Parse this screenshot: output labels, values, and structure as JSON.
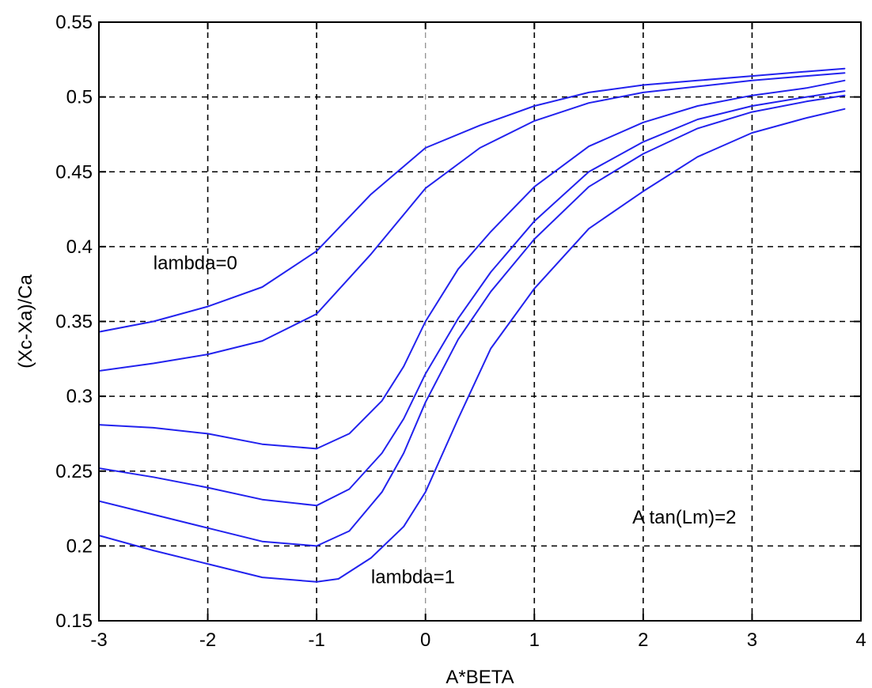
{
  "chart_data": {
    "type": "line",
    "xlabel": "A*BETA",
    "ylabel": "(Xc-Xa)/Ca",
    "xlim": [
      -3,
      4
    ],
    "ylim": [
      0.15,
      0.55
    ],
    "xticks": [
      "-3",
      "-2",
      "-1",
      "0",
      "1",
      "2",
      "3",
      "4"
    ],
    "yticks": [
      "0.15",
      "0.2",
      "0.25",
      "0.3",
      "0.35",
      "0.4",
      "0.45",
      "0.5",
      "0.55"
    ],
    "grid": true,
    "line_color": "#2222ee",
    "annotations": [
      {
        "text": "lambda=0",
        "x": -2.5,
        "y": 0.385
      },
      {
        "text": "lambda=1",
        "x": -0.5,
        "y": 0.175
      },
      {
        "text": "A tan(Lm)=2",
        "x": 1.9,
        "y": 0.215
      }
    ],
    "series": [
      {
        "x": [
          -3,
          -2.5,
          -2,
          -1.5,
          -1,
          -0.5,
          0,
          0.5,
          1,
          1.5,
          2,
          2.5,
          3,
          3.5,
          3.85
        ],
        "y": [
          0.343,
          0.35,
          0.36,
          0.373,
          0.397,
          0.435,
          0.466,
          0.481,
          0.494,
          0.503,
          0.508,
          0.511,
          0.514,
          0.517,
          0.519
        ]
      },
      {
        "x": [
          -3,
          -2.5,
          -2,
          -1.5,
          -1,
          -0.5,
          0,
          0.5,
          1,
          1.5,
          2,
          2.5,
          3,
          3.5,
          3.85
        ],
        "y": [
          0.317,
          0.322,
          0.328,
          0.337,
          0.355,
          0.395,
          0.439,
          0.466,
          0.484,
          0.496,
          0.503,
          0.507,
          0.511,
          0.514,
          0.516
        ]
      },
      {
        "x": [
          -3,
          -2.5,
          -2,
          -1.5,
          -1,
          -0.7,
          -0.4,
          -0.2,
          0,
          0.3,
          0.6,
          1,
          1.5,
          2,
          2.5,
          3,
          3.5,
          3.85
        ],
        "y": [
          0.281,
          0.279,
          0.275,
          0.268,
          0.265,
          0.275,
          0.297,
          0.32,
          0.35,
          0.385,
          0.41,
          0.44,
          0.467,
          0.483,
          0.494,
          0.501,
          0.506,
          0.511
        ]
      },
      {
        "x": [
          -3,
          -2.5,
          -2,
          -1.5,
          -1,
          -0.7,
          -0.4,
          -0.2,
          0,
          0.3,
          0.6,
          1,
          1.5,
          2,
          2.5,
          3,
          3.5,
          3.85
        ],
        "y": [
          0.252,
          0.246,
          0.239,
          0.231,
          0.227,
          0.238,
          0.262,
          0.285,
          0.315,
          0.352,
          0.383,
          0.417,
          0.45,
          0.47,
          0.485,
          0.494,
          0.5,
          0.504
        ]
      },
      {
        "x": [
          -3,
          -2.5,
          -2,
          -1.5,
          -1,
          -0.7,
          -0.4,
          -0.2,
          0,
          0.3,
          0.6,
          1,
          1.5,
          2,
          2.5,
          3,
          3.5,
          3.85
        ],
        "y": [
          0.23,
          0.221,
          0.212,
          0.203,
          0.2,
          0.21,
          0.236,
          0.262,
          0.296,
          0.338,
          0.37,
          0.405,
          0.44,
          0.462,
          0.479,
          0.49,
          0.497,
          0.501
        ]
      },
      {
        "x": [
          -3,
          -2.5,
          -2,
          -1.5,
          -1,
          -0.8,
          -0.5,
          -0.2,
          0,
          0.3,
          0.6,
          1,
          1.5,
          2,
          2.5,
          3,
          3.5,
          3.85
        ],
        "y": [
          0.207,
          0.197,
          0.188,
          0.179,
          0.176,
          0.178,
          0.192,
          0.213,
          0.236,
          0.285,
          0.332,
          0.372,
          0.412,
          0.437,
          0.46,
          0.476,
          0.486,
          0.492
        ]
      }
    ]
  }
}
